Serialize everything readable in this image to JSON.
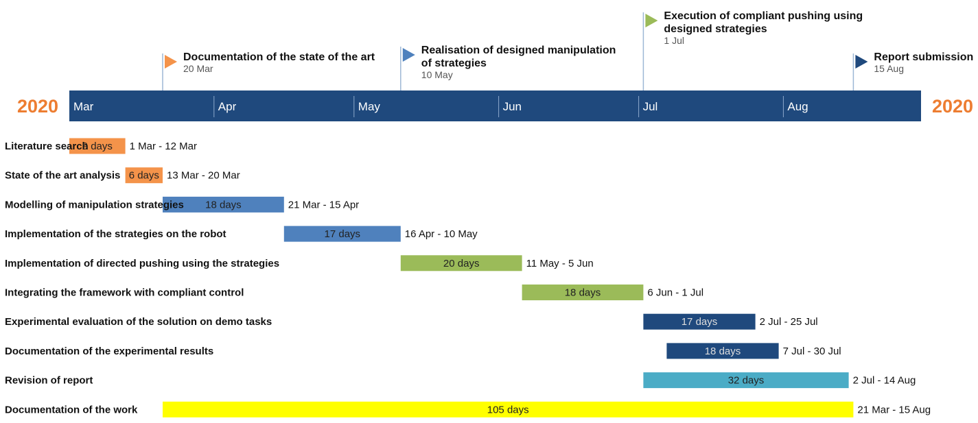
{
  "chart_data": {
    "type": "gantt",
    "year": "2020",
    "months": [
      "Mar",
      "Apr",
      "May",
      "Jun",
      "Jul",
      "Aug"
    ],
    "milestones": [
      {
        "title": [
          "Documentation of the state of the art"
        ],
        "date": "20 Mar",
        "day": 81,
        "color": "#f4934a"
      },
      {
        "title": [
          "Realisation of designed manipulation",
          "of strategies"
        ],
        "date": "10 May",
        "day": 132,
        "color": "#4f81bd"
      },
      {
        "title": [
          "Execution of compliant pushing using",
          "designed strategies"
        ],
        "date": "1 Jul",
        "day": 184,
        "color": "#9bbb59"
      },
      {
        "title": [
          "Report submission"
        ],
        "date": "15 Aug",
        "day": 229,
        "color": "#1f497d"
      }
    ],
    "tasks": [
      {
        "name": "Literature search",
        "duration": "9 days",
        "range": "1 Mar - 12 Mar",
        "start": 61,
        "end": 72,
        "color": "#f4934a",
        "text_color": "#222222"
      },
      {
        "name": "State of the art analysis",
        "duration": "6 days",
        "range": "13 Mar - 20 Mar",
        "start": 73,
        "end": 80,
        "color": "#f4934a",
        "text_color": "#222222"
      },
      {
        "name": "Modelling of manipulation strategies",
        "duration": "18 days",
        "range": "21 Mar - 15 Apr",
        "start": 81,
        "end": 106,
        "color": "#4f81bd",
        "text_color": "#222222"
      },
      {
        "name": "Implementation of the strategies on the robot",
        "duration": "17 days",
        "range": "16 Apr - 10 May",
        "start": 107,
        "end": 131,
        "color": "#4f81bd",
        "text_color": "#222222"
      },
      {
        "name": "Implementation of directed pushing using the strategies",
        "duration": "20 days",
        "range": "11 May - 5 Jun",
        "start": 132,
        "end": 157,
        "color": "#9bbb59",
        "text_color": "#222222"
      },
      {
        "name": "Integrating the framework with compliant control",
        "duration": "18 days",
        "range": "6 Jun - 1 Jul",
        "start": 158,
        "end": 183,
        "color": "#9bbb59",
        "text_color": "#222222"
      },
      {
        "name": "Experimental evaluation of the solution on demo tasks",
        "duration": "17 days",
        "range": "2 Jul - 25 Jul",
        "start": 184,
        "end": 207,
        "color": "#1f497d",
        "text_color": "#dddddd"
      },
      {
        "name": "Documentation of the experimental results",
        "duration": "18 days",
        "range": "7 Jul - 30 Jul",
        "start": 189,
        "end": 212,
        "color": "#1f497d",
        "text_color": "#dddddd"
      },
      {
        "name": "Revision of report",
        "duration": "32 days",
        "range": "2 Jul - 14 Aug",
        "start": 184,
        "end": 227,
        "color": "#4bacc6",
        "text_color": "#222222"
      },
      {
        "name": "Documentation of the work",
        "duration": "105 days",
        "range": "21 Mar - 15 Aug",
        "start": 81,
        "end": 228,
        "color": "#ffff00",
        "text_color": "#222222"
      }
    ],
    "colors": {
      "timeline_band": "#1f497d",
      "year_label": "#ed7d31",
      "month_label": "#ffffff"
    }
  }
}
